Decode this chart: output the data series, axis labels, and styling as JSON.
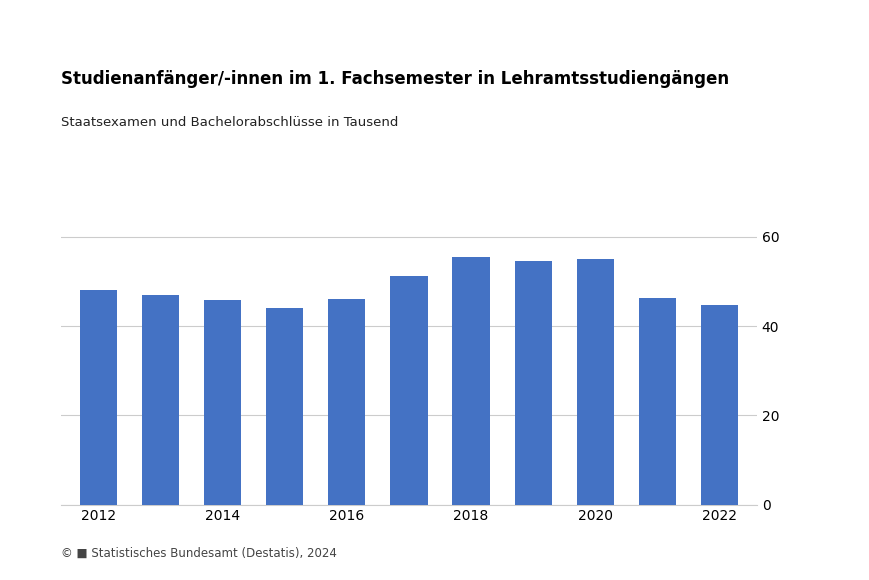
{
  "title": "Studienanfänger/-innen im 1. Fachsemester in Lehramtsstudiengängen",
  "subtitle": "Staatsexamen und Bachelorabschlüsse in Tausend",
  "footer": "© ■ Statistisches Bundesamt (Destatis), 2024",
  "years": [
    2012,
    2013,
    2014,
    2015,
    2016,
    2017,
    2018,
    2019,
    2020,
    2021,
    2022
  ],
  "values": [
    48.2,
    47.0,
    45.8,
    44.0,
    46.0,
    51.2,
    55.5,
    54.5,
    55.0,
    46.2,
    44.8
  ],
  "bar_color": "#4472C4",
  "ylim": [
    0,
    65
  ],
  "yticks": [
    0,
    20,
    40,
    60
  ],
  "background_color": "#ffffff",
  "grid_color": "#cccccc",
  "title_fontsize": 12,
  "subtitle_fontsize": 9.5,
  "tick_fontsize": 10,
  "footer_fontsize": 8.5,
  "bar_width": 0.6
}
